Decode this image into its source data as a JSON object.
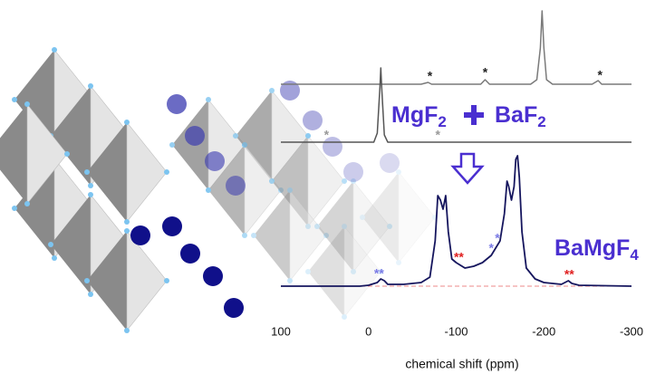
{
  "chart_data": {
    "type": "line",
    "xlabel": "chemical shift (ppm)",
    "xlim": [
      100,
      -300
    ],
    "xticks": [
      100,
      0,
      -100,
      -200,
      -300
    ],
    "reactant_a": [
      "MgF",
      "2"
    ],
    "reactant_b": [
      "BaF",
      "2"
    ],
    "product": [
      "BaMgF",
      "4"
    ],
    "series": [
      {
        "color": "#7a7a7a",
        "x": [
          100,
          -60,
          -68,
          -72,
          -80,
          -128,
          -133,
          -138,
          -185,
          -192,
          -196,
          -198,
          -200,
          -203,
          -210,
          -255,
          -262,
          -266,
          -270,
          -300
        ],
        "values": [
          0,
          0,
          2,
          0,
          0,
          0,
          5,
          0,
          0,
          5,
          40,
          81,
          40,
          5,
          0,
          0,
          4,
          0,
          0,
          0
        ],
        "markers": [
          {
            "text": "*",
            "x": -70,
            "color": "#222"
          },
          {
            "text": "*",
            "x": -133,
            "color": "#222"
          },
          {
            "text": "*",
            "x": -264,
            "color": "#222"
          }
        ]
      },
      {
        "color": "#555555",
        "x": [
          100,
          -6,
          -10,
          -13,
          -14,
          -15,
          -18,
          -22,
          -300
        ],
        "values": [
          0,
          0,
          10,
          60,
          82,
          60,
          8,
          0,
          0
        ],
        "markers": [
          {
            "text": "*",
            "x": 48,
            "color": "#999"
          },
          {
            "text": "*",
            "x": -79,
            "color": "#999"
          }
        ]
      },
      {
        "color": "#16165e",
        "x": [
          100,
          20,
          10,
          0,
          -10,
          -14,
          -18,
          -22,
          -40,
          -60,
          -70,
          -76,
          -79,
          -82,
          -85,
          -88,
          -91,
          -95,
          -100,
          -110,
          -120,
          -130,
          -140,
          -150,
          -155,
          -158,
          -160,
          -163,
          -166,
          -168,
          -170,
          -172,
          -175,
          -180,
          -190,
          -200,
          -220,
          -228,
          -232,
          -240,
          -300
        ],
        "values": [
          0,
          0,
          0,
          1,
          4,
          8,
          6,
          2,
          2,
          4,
          10,
          50,
          100,
          95,
          85,
          100,
          60,
          30,
          26,
          20,
          22,
          26,
          34,
          50,
          80,
          116,
          110,
          95,
          110,
          140,
          144,
          120,
          60,
          20,
          8,
          4,
          2,
          6,
          3,
          1,
          0
        ],
        "markers": [
          {
            "text": "**",
            "x": -12,
            "color": "#7b7be6"
          },
          {
            "text": "**",
            "x": -103,
            "color": "#e02020"
          },
          {
            "text": "*",
            "x": -140,
            "color": "#7b7be6"
          },
          {
            "text": "*",
            "x": -147,
            "color": "#7b7be6"
          },
          {
            "text": "**",
            "x": -229,
            "color": "#e02020"
          }
        ]
      }
    ]
  }
}
